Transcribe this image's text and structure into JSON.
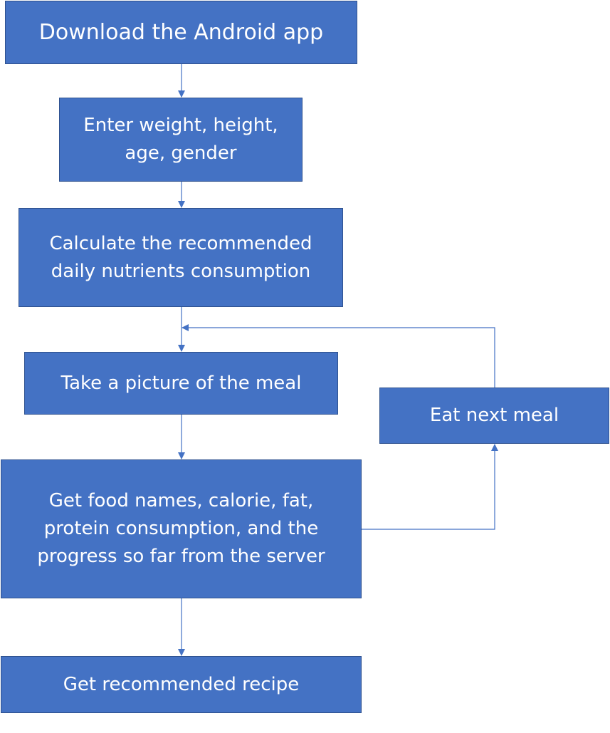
{
  "diagram": {
    "colors": {
      "box_fill": "#4472c4",
      "box_border": "#2f528f",
      "box_text": "#ffffff",
      "connector": "#4472c4"
    },
    "steps": {
      "download": "Download the Android app",
      "enter_profile": "Enter weight, height, age, gender",
      "calculate": "Calculate the recommended daily nutrients consumption",
      "take_picture": "Take a picture of the meal",
      "eat_next": "Eat next meal",
      "get_food_info": "Get food names, calorie, fat, protein consumption, and the progress so far from the server",
      "get_recipe": "Get recommended recipe"
    }
  }
}
